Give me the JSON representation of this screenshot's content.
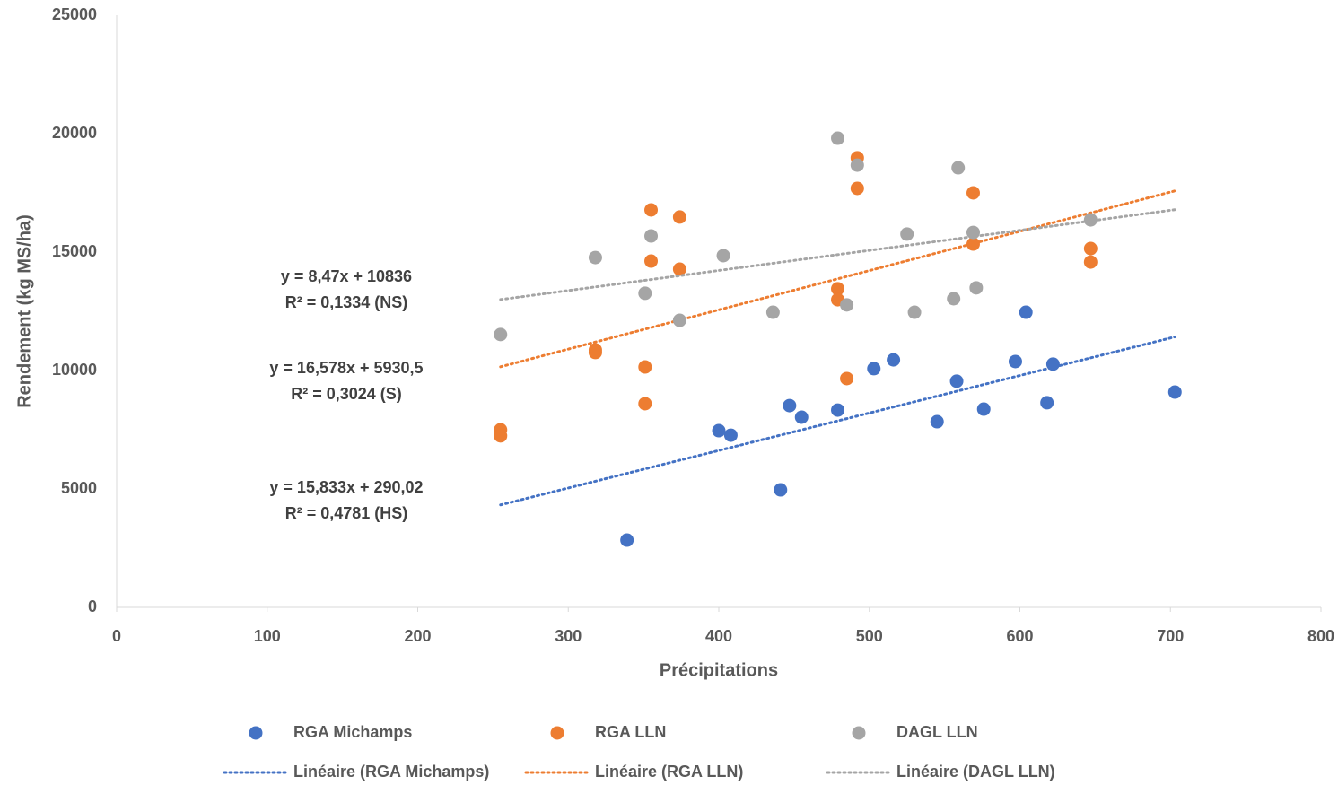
{
  "chart_data": {
    "type": "scatter",
    "x_label": "Précipitations",
    "y_label": "Rendement (kg MS/ha)",
    "xlim": [
      0,
      800
    ],
    "xticks": [
      0,
      100,
      200,
      300,
      400,
      500,
      600,
      700,
      800
    ],
    "ylim": [
      0,
      25000
    ],
    "yticks": [
      0,
      5000,
      10000,
      15000,
      20000,
      25000
    ],
    "series": [
      {
        "name": "RGA Michamps",
        "color": "#4472c4",
        "x": [
          339,
          400,
          408,
          441,
          447,
          455,
          479,
          503,
          516,
          545,
          558,
          576,
          597,
          604,
          618,
          622,
          703
        ],
        "values": [
          2840,
          7460,
          7270,
          4960,
          8520,
          8030,
          8330,
          10080,
          10450,
          7840,
          9550,
          8370,
          10380,
          12460,
          8640,
          10270,
          9090
        ],
        "trendline": {
          "name": "Linéaire (RGA Michamps)",
          "equation": "y = 15,833x + 290,02",
          "r2": "R² = 0,4781 (HS)",
          "slope": 15.833,
          "intercept": 290.02
        }
      },
      {
        "name": "RGA LLN",
        "color": "#ed7d31",
        "x": [
          255,
          255,
          318,
          318,
          351,
          351,
          355,
          355,
          374,
          374,
          479,
          479,
          485,
          492,
          492,
          569,
          569,
          647,
          647
        ],
        "values": [
          7500,
          7240,
          10870,
          10760,
          10150,
          8600,
          16780,
          14620,
          16480,
          14280,
          13450,
          12990,
          9660,
          18980,
          17690,
          17500,
          15340,
          15150,
          14580
        ],
        "trendline": {
          "name": "Linéaire (RGA LLN)",
          "equation": "y = 16,578x + 5930,5",
          "r2": "R² = 0,3024 (S)",
          "slope": 16.578,
          "intercept": 5930.5
        }
      },
      {
        "name": "DAGL LLN",
        "color": "#a5a5a5",
        "x": [
          255,
          318,
          351,
          355,
          374,
          403,
          436,
          479,
          485,
          492,
          525,
          530,
          556,
          559,
          569,
          571,
          647
        ],
        "values": [
          11520,
          14770,
          13260,
          15680,
          12120,
          14850,
          12460,
          19810,
          12770,
          18670,
          15760,
          12460,
          13030,
          18560,
          15830,
          13490,
          16360
        ],
        "trendline": {
          "name": "Linéaire (DAGL LLN)",
          "equation": "y = 8,47x + 10836",
          "r2": "R² = 0,1334 (NS)",
          "slope": 8.47,
          "intercept": 10836
        }
      }
    ]
  }
}
